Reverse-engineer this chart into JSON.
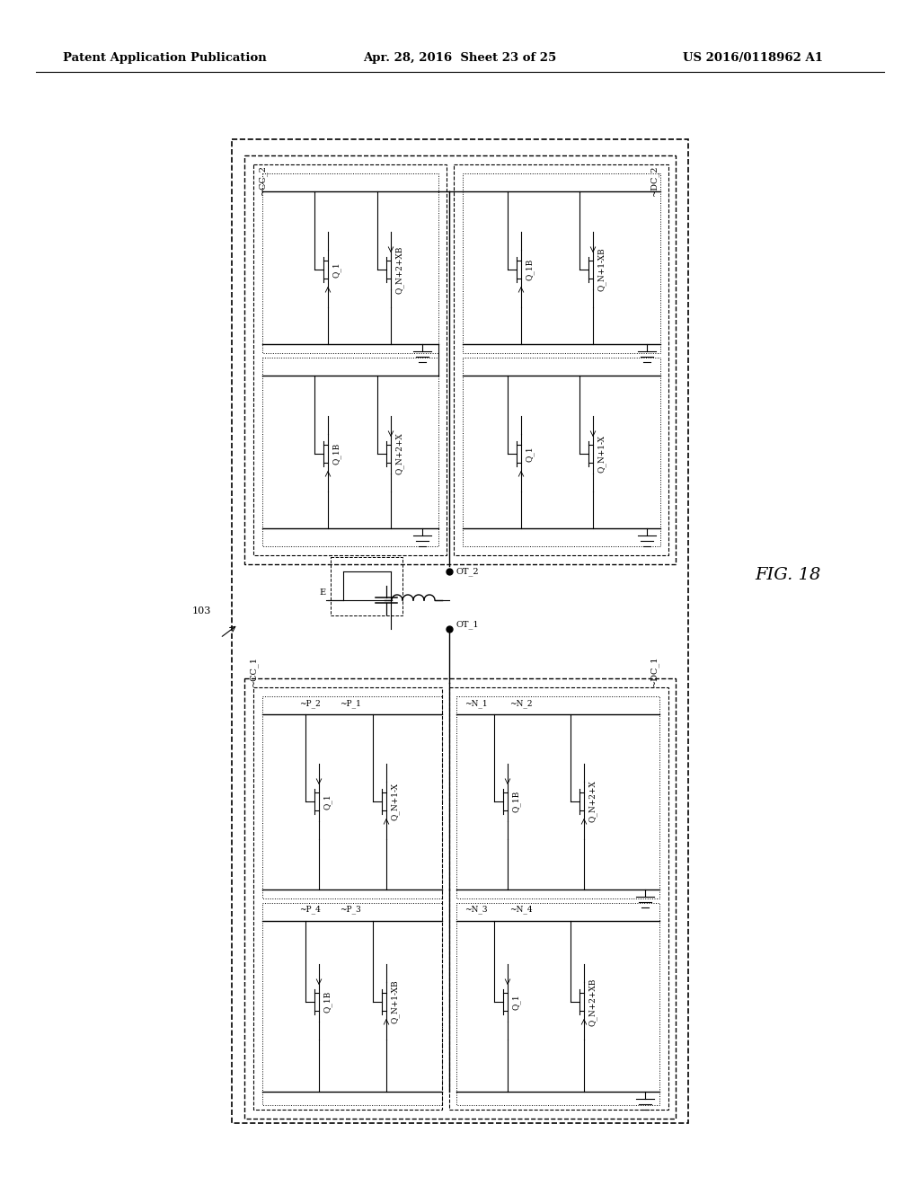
{
  "header_left": "Patent Application Publication",
  "header_center": "Apr. 28, 2016  Sheet 23 of 25",
  "header_right": "US 2016/0118962 A1",
  "title": "FIG. 18",
  "label_103": "103",
  "bg_color": "#ffffff"
}
